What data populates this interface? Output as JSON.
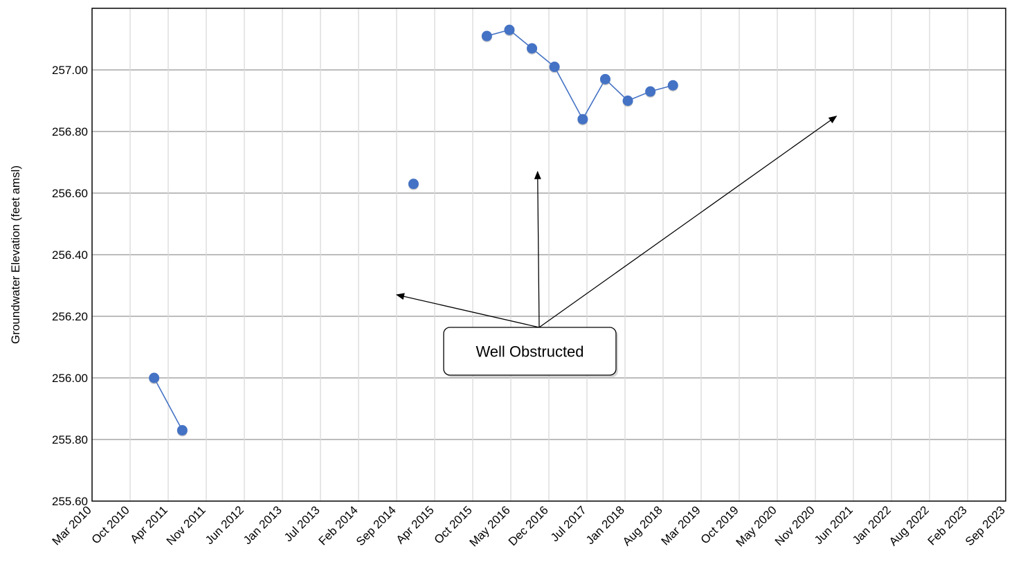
{
  "chart_data": {
    "type": "scatter",
    "ylabel": "Groundwater Elevation (feet amsl)",
    "xlabel": "",
    "ylim": [
      255.6,
      257.2
    ],
    "y_ticks": [
      "255.60",
      "255.80",
      "256.00",
      "256.20",
      "256.40",
      "256.60",
      "256.80",
      "257.00"
    ],
    "x_range": [
      "2010-03",
      "2023-09"
    ],
    "x_tick_labels": [
      "Mar 2010",
      "Oct 2010",
      "Apr 2011",
      "Nov 2011",
      "Jun 2012",
      "Jan 2013",
      "Jul 2013",
      "Feb 2014",
      "Sep 2014",
      "Apr 2015",
      "Oct 2015",
      "May 2016",
      "Dec 2016",
      "Jul 2017",
      "Jan 2018",
      "Aug 2018",
      "Mar 2019",
      "Oct 2019",
      "May 2020",
      "Nov 2020",
      "Jun 2021",
      "Jan 2022",
      "Aug 2022",
      "Feb 2023",
      "Sep 2023"
    ],
    "grid": true,
    "marker_color": "#4472C4",
    "segments": [
      {
        "x": [
          "2011-02",
          "2011-07"
        ],
        "y": [
          256.0,
          255.83
        ],
        "connected": true
      },
      {
        "x": [
          "2014-12"
        ],
        "y": [
          256.63
        ],
        "connected": false
      },
      {
        "x": [
          "2016-01",
          "2016-05",
          "2016-09",
          "2017-01",
          "2017-06",
          "2017-10",
          "2018-02",
          "2018-06",
          "2018-10"
        ],
        "y": [
          257.11,
          257.13,
          257.07,
          257.01,
          256.84,
          256.97,
          256.9,
          256.93,
          256.95
        ],
        "connected": true
      }
    ],
    "annotations": [
      {
        "text": "Well Obstructed",
        "arrows_to": [
          [
            "2014-09",
            256.27
          ],
          [
            "2016-10",
            256.67
          ],
          [
            "2021-03",
            256.85
          ]
        ]
      }
    ]
  }
}
